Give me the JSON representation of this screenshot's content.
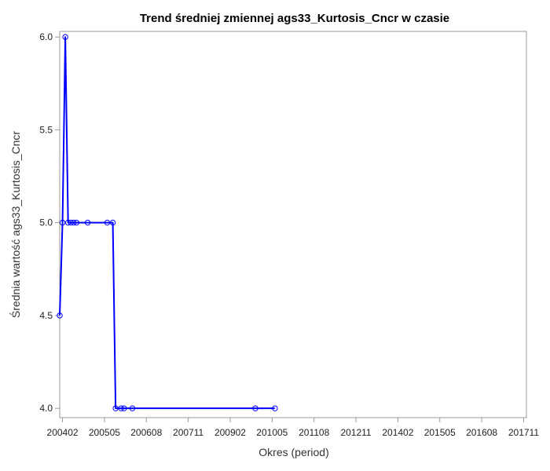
{
  "chart_data": {
    "type": "line",
    "title": "Trend średniej zmiennej ags33_Kurtosis_Cncr w czasie",
    "xlabel": "Okres (period)",
    "ylabel": "Średnia wartość ags33_Kurtosis_Cncr",
    "x_ticks": [
      "200402",
      "200505",
      "200608",
      "200711",
      "200902",
      "201005",
      "201108",
      "201211",
      "201402",
      "201505",
      "201608",
      "201711"
    ],
    "y_ticks": [
      "4.0",
      "4.5",
      "5.0",
      "5.5",
      "6.0"
    ],
    "ylim": [
      3.95,
      6.03
    ],
    "xlim_months_from_tick0": [
      -1,
      166
    ],
    "grid": false,
    "colors": {
      "line": "#0000ff",
      "marker": "#0000ff",
      "axis": "#9a9a9a"
    },
    "series": [
      {
        "values": [
          {
            "x": "200401",
            "y": 4.5
          },
          {
            "x": "200402",
            "y": 5.0
          },
          {
            "x": "200403",
            "y": 6.0
          },
          {
            "x": "200404",
            "y": 5.0
          },
          {
            "x": "200405",
            "y": 5.0
          },
          {
            "x": "200406",
            "y": 5.0
          },
          {
            "x": "200407",
            "y": 5.0
          },
          {
            "x": "200411",
            "y": 5.0
          },
          {
            "x": "200506",
            "y": 5.0
          },
          {
            "x": "200508",
            "y": 5.0
          },
          {
            "x": "200509",
            "y": 4.0
          },
          {
            "x": "200511",
            "y": 4.0
          },
          {
            "x": "200512",
            "y": 4.0
          },
          {
            "x": "200603",
            "y": 4.0
          },
          {
            "x": "200911",
            "y": 4.0
          },
          {
            "x": "201006",
            "y": 4.0
          }
        ]
      }
    ]
  }
}
